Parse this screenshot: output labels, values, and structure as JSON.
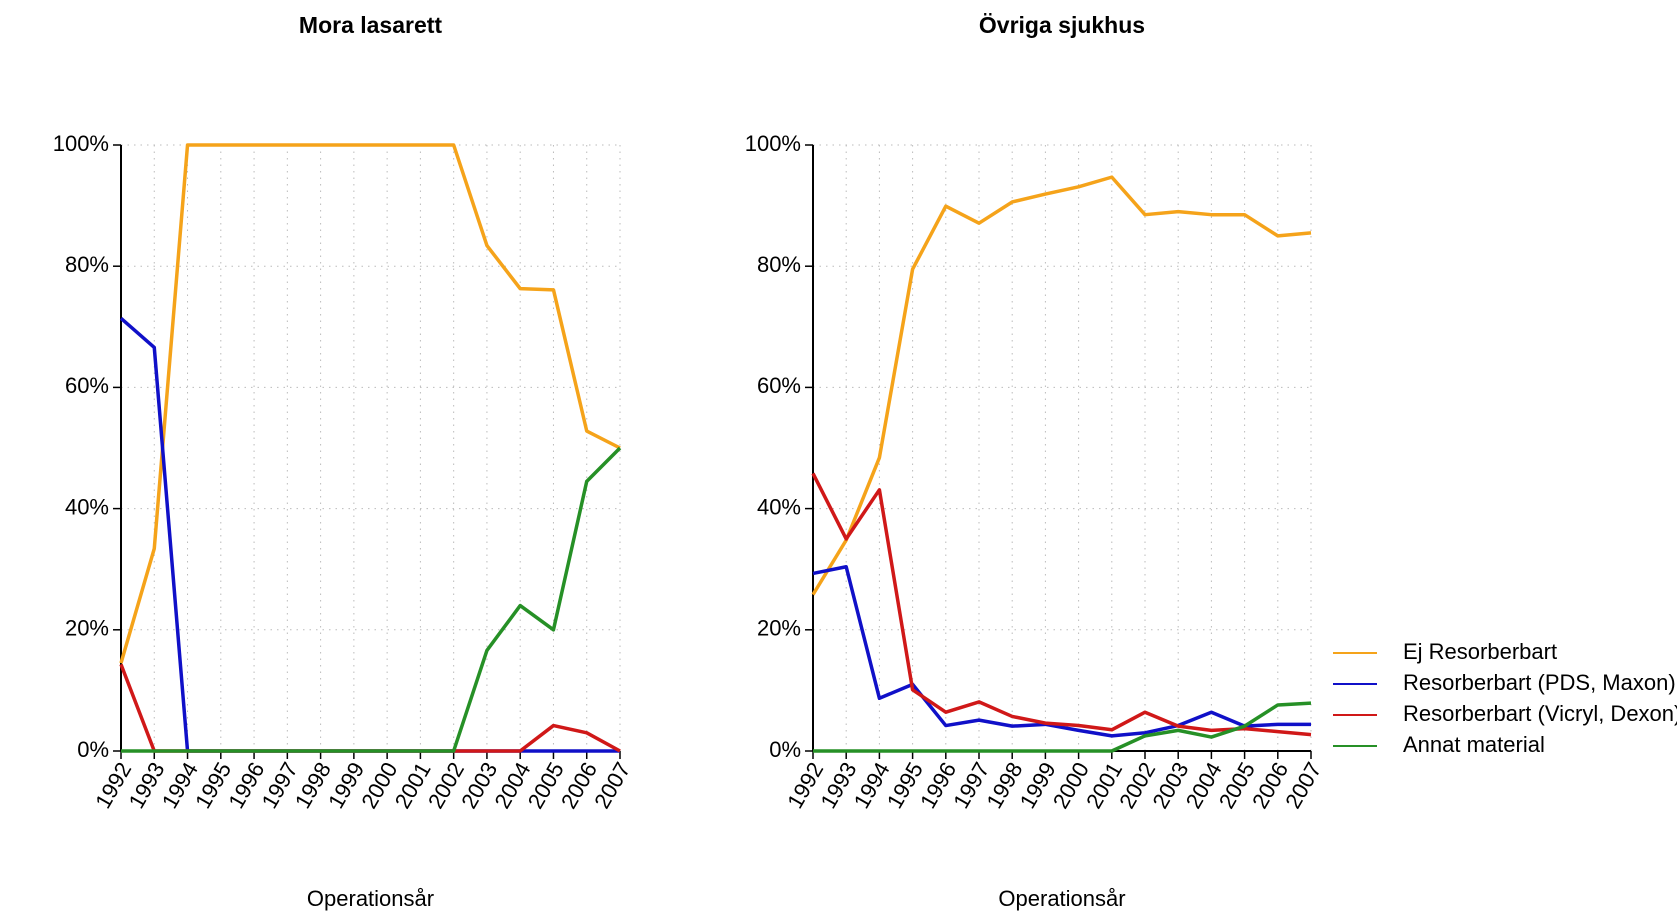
{
  "chart_data": [
    {
      "type": "line",
      "title": "Mora lasarett",
      "x_label": "Operationsår",
      "categories": [
        "1992",
        "1993",
        "1994",
        "1995",
        "1996",
        "1997",
        "1998",
        "1999",
        "2000",
        "2001",
        "2002",
        "2003",
        "2004",
        "2005",
        "2006",
        "2007"
      ],
      "ylim": [
        0,
        100
      ],
      "yticks": [
        {
          "value": 0,
          "label": "0%"
        },
        {
          "value": 20,
          "label": "20%"
        },
        {
          "value": 40,
          "label": "40%"
        },
        {
          "value": 60,
          "label": "60%"
        },
        {
          "value": 80,
          "label": "80%"
        },
        {
          "value": 100,
          "label": "100%"
        }
      ],
      "grid": true,
      "series": [
        {
          "color": "#f5a31a",
          "values": [
            14.5,
            33.4,
            100,
            100,
            100,
            100,
            100,
            100,
            100,
            100,
            100,
            83.4,
            76.3,
            76.1,
            52.8,
            50
          ]
        },
        {
          "color": "#1010c8",
          "values": [
            71.4,
            66.6,
            0,
            0,
            0,
            0,
            0,
            0,
            0,
            0,
            0,
            0,
            0,
            0,
            0,
            0
          ]
        },
        {
          "color": "#d01818",
          "values": [
            14.3,
            0,
            0,
            0,
            0,
            0,
            0,
            0,
            0,
            0,
            0,
            0,
            0,
            4.2,
            3.0,
            0
          ]
        },
        {
          "color": "#269026",
          "values": [
            0,
            0,
            0,
            0,
            0,
            0,
            0,
            0,
            0,
            0,
            0,
            16.6,
            24.0,
            20,
            44.5,
            50
          ]
        }
      ]
    },
    {
      "type": "line",
      "title": "Övriga sjukhus",
      "x_label": "Operationsår",
      "categories": [
        "1992",
        "1993",
        "1994",
        "1995",
        "1996",
        "1997",
        "1998",
        "1999",
        "2000",
        "2001",
        "2002",
        "2003",
        "2004",
        "2005",
        "2006",
        "2007"
      ],
      "ylim": [
        0,
        100
      ],
      "yticks": [
        {
          "value": 0,
          "label": "0%"
        },
        {
          "value": 20,
          "label": "20%"
        },
        {
          "value": 40,
          "label": "40%"
        },
        {
          "value": 60,
          "label": "60%"
        },
        {
          "value": 80,
          "label": "80%"
        },
        {
          "value": 100,
          "label": "100%"
        }
      ],
      "grid": true,
      "legend": "right",
      "series": [
        {
          "name": "Ej Resorberbart",
          "color": "#f5a31a",
          "values": [
            25.8,
            34.8,
            48.4,
            79.5,
            89.9,
            87.1,
            90.6,
            91.9,
            93.1,
            94.7,
            88.5,
            89.0,
            88.5,
            88.5,
            85.0,
            85.5
          ]
        },
        {
          "name": "Resorberbart (PDS, Maxon)",
          "color": "#1010c8",
          "values": [
            29.3,
            30.4,
            8.7,
            11.0,
            4.2,
            5.1,
            4.1,
            4.4,
            3.4,
            2.5,
            3.0,
            4.2,
            6.4,
            4.1,
            4.4,
            4.4
          ]
        },
        {
          "name": "Resorberbart (Vicryl, Dexon)",
          "color": "#d01818",
          "values": [
            45.8,
            35.0,
            43.1,
            10.1,
            6.4,
            8.1,
            5.7,
            4.6,
            4.2,
            3.5,
            6.4,
            4.1,
            3.4,
            3.7,
            3.2,
            2.7
          ]
        },
        {
          "name": "Annat material",
          "color": "#269026",
          "values": [
            0,
            0,
            0,
            0,
            0,
            0,
            0,
            0,
            0,
            0,
            2.5,
            3.4,
            2.3,
            4.1,
            7.6,
            7.9
          ]
        }
      ]
    }
  ]
}
